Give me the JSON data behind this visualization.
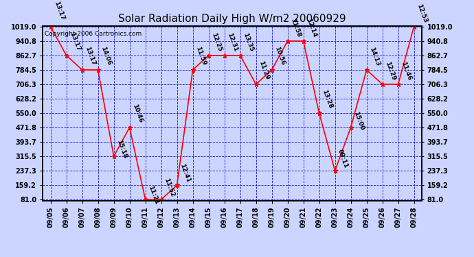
{
  "title": "Solar Radiation Daily High W/m2 20060929",
  "copyright": "Copyright 2006 Cartronics.com",
  "dates": [
    "09/05",
    "09/06",
    "09/07",
    "09/08",
    "09/09",
    "09/10",
    "09/11",
    "09/12",
    "09/13",
    "09/14",
    "09/15",
    "09/16",
    "09/17",
    "09/18",
    "09/19",
    "09/20",
    "09/21",
    "09/22",
    "09/23",
    "09/24",
    "09/25",
    "09/26",
    "09/27",
    "09/28"
  ],
  "values": [
    1019.0,
    862.7,
    784.5,
    784.5,
    315.5,
    471.8,
    81.0,
    81.0,
    159.2,
    784.5,
    862.7,
    862.7,
    862.7,
    706.3,
    784.5,
    940.8,
    940.8,
    550.0,
    237.3,
    471.8,
    784.5,
    706.3,
    706.3,
    1019.0
  ],
  "labels": [
    "13:17",
    "13:17",
    "13:17",
    "14:06",
    "15:18",
    "10:46",
    "11:21",
    "11:52",
    "12:41",
    "11:59",
    "12:25",
    "12:31",
    "13:35",
    "11:29",
    "10:56",
    "11:58",
    "12:14",
    "13:28",
    "09:11",
    "15:00",
    "14:13",
    "12:29",
    "11:46",
    "12:53"
  ],
  "yticks": [
    81.0,
    159.2,
    237.3,
    315.5,
    393.7,
    471.8,
    550.0,
    628.2,
    706.3,
    784.5,
    862.7,
    940.8,
    1019.0
  ],
  "line_color": "red",
  "marker_color": "red",
  "bg_color": "#ccd5ff",
  "grid_color": "#0000cc",
  "text_color": "black",
  "title_fontsize": 11,
  "label_fontsize": 6.5,
  "ymin": 81.0,
  "ymax": 1019.0
}
